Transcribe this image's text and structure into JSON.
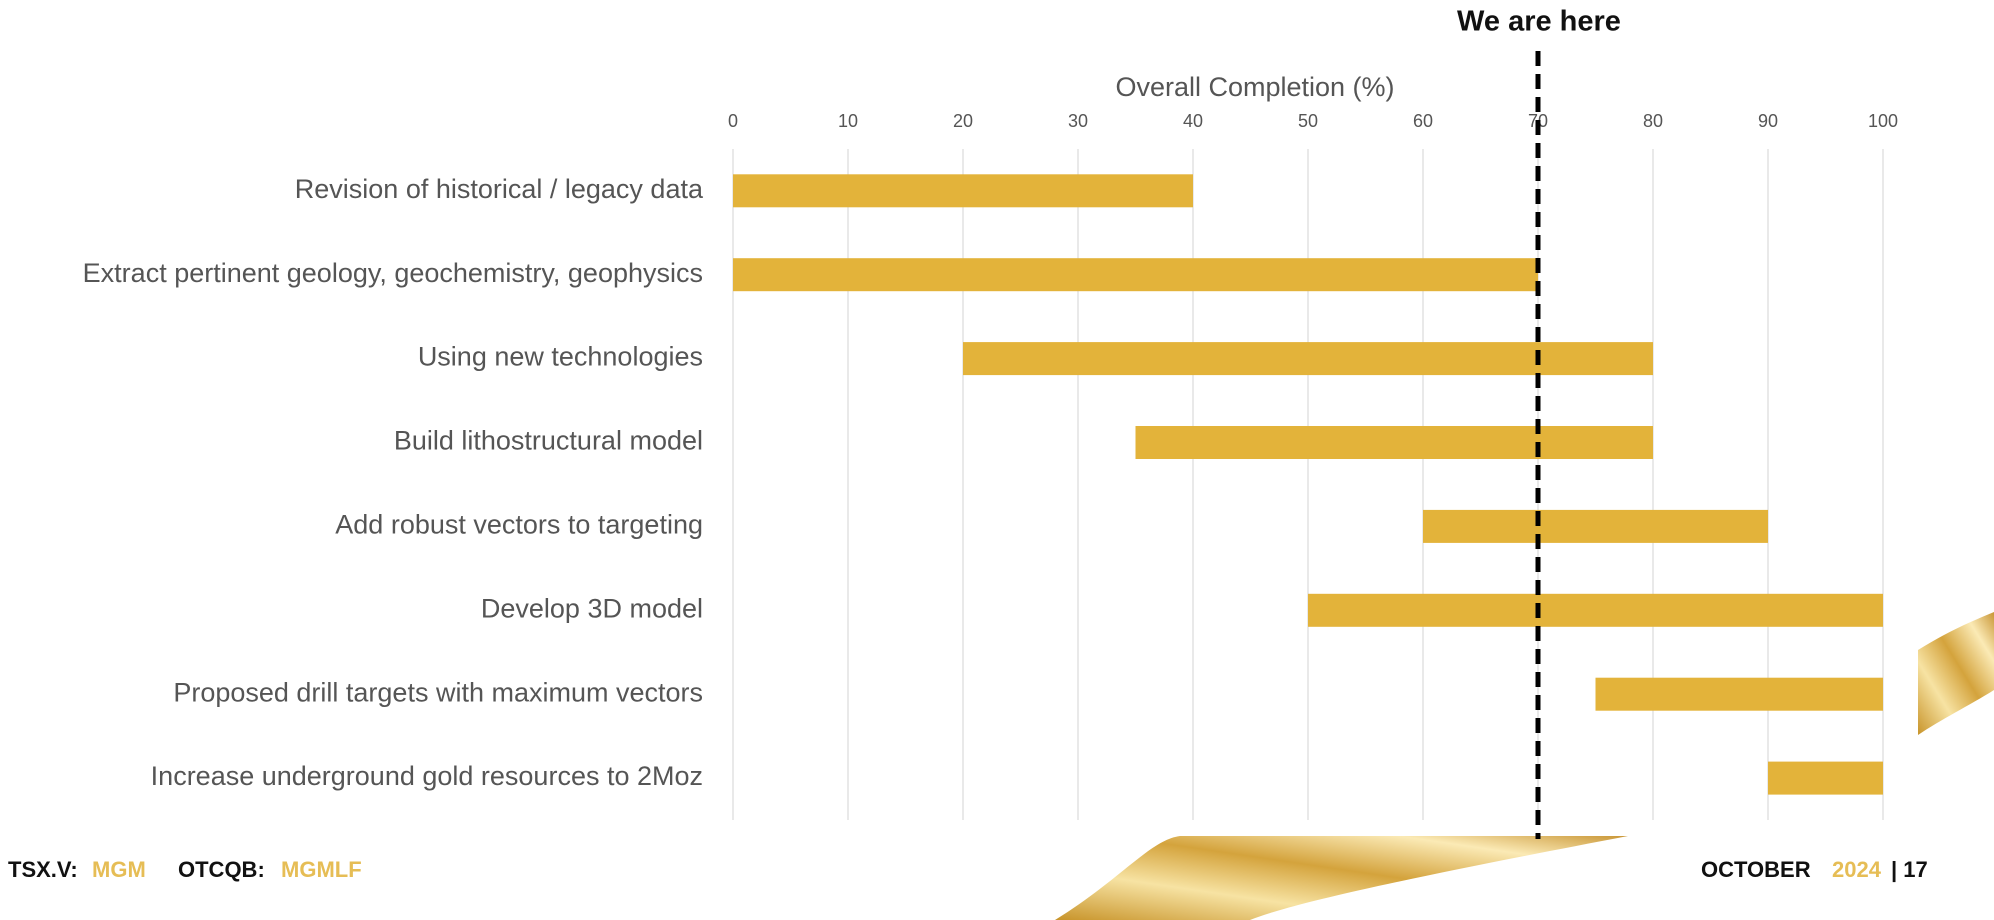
{
  "chart_data": {
    "type": "gantt",
    "xlabel": "Overall Completion (%)",
    "categories": [
      "Revision of historical / legacy data",
      "Extract pertinent geology, geochemistry, geophysics",
      "Using new technologies",
      "Build lithostructural model",
      "Add robust vectors to targeting",
      "Develop 3D model",
      "Proposed drill targets with maximum vectors",
      "Increase underground gold resources to 2Moz"
    ],
    "start": [
      0,
      0,
      20,
      35,
      60,
      50,
      75,
      90
    ],
    "end": [
      40,
      70,
      80,
      80,
      90,
      100,
      100,
      100
    ],
    "color": "#e3b33a",
    "xlim": [
      0,
      100
    ],
    "xticks": [
      0,
      10,
      20,
      30,
      40,
      50,
      60,
      70,
      80,
      90,
      100
    ],
    "grid": true,
    "marker": {
      "text": "We are here",
      "x": 70
    }
  },
  "footer": {
    "ticker1_label": "TSX.V:",
    "ticker1": "MGM",
    "ticker2_label": "OTCQB:",
    "ticker2": "MGMLF",
    "month": "OCTOBER",
    "year": "2024",
    "page": "| 17"
  }
}
